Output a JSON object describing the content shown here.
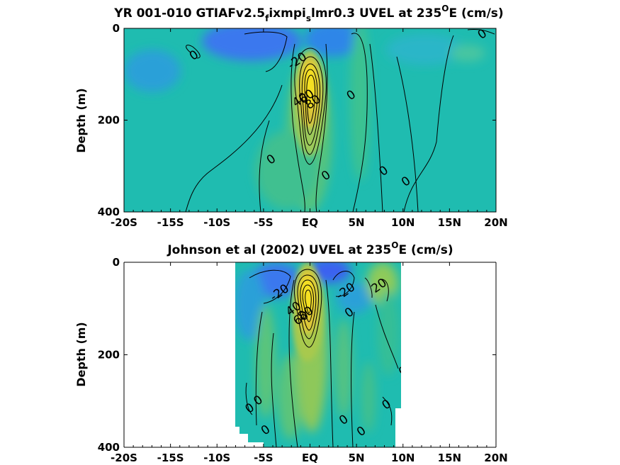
{
  "colors": {
    "background_field": "#1fbcb0",
    "negative_strong": "#3a78ee",
    "negative_mid": "#2aa0d8",
    "positive_mid": "#58c47a",
    "positive_high": "#c8c830",
    "core": "#f5e020",
    "contour": "#000000"
  },
  "chart_data": [
    {
      "id": "model",
      "type": "heatmap",
      "title": {
        "pre": "YR 001-010 GTIAFv2.5",
        "sub1": "f",
        "mid": "ixmpi",
        "sub2": "s",
        "post": "lmr0.3 UVEL at 235",
        "sup": "O",
        "end": "E (cm/s)"
      },
      "ylabel": "Depth (m)",
      "xticks": [
        "-20S",
        "-15S",
        "-10S",
        "-5S",
        "EQ",
        "5N",
        "10N",
        "15N",
        "20N"
      ],
      "yticks": [
        "0",
        "200",
        "400"
      ],
      "xlim": [
        -20,
        20
      ],
      "ylim": [
        0,
        400
      ],
      "data_lon_range": [
        -20,
        20
      ],
      "eastward_core": {
        "lat": 0,
        "depth": 120,
        "max": 100
      },
      "westward_cores": [
        {
          "lat": -4,
          "depth": 30,
          "min": -30
        },
        {
          "lat": 3,
          "depth": 20,
          "min": -25
        }
      ],
      "contour_levels": [
        -20,
        0,
        20,
        40,
        60,
        80,
        100
      ],
      "contour_labels": [
        {
          "text": "0",
          "lat": -12.5,
          "depth": 58
        },
        {
          "text": "-20",
          "lat": -1.4,
          "depth": 70
        },
        {
          "text": "0",
          "lat": 4.4,
          "depth": 145
        },
        {
          "text": "0",
          "lat": -4.2,
          "depth": 285
        },
        {
          "text": "0",
          "lat": 1.7,
          "depth": 320
        },
        {
          "text": "0",
          "lat": 7.9,
          "depth": 310
        },
        {
          "text": "0",
          "lat": 10.3,
          "depth": 333
        },
        {
          "text": "0",
          "lat": 18.5,
          "depth": 12
        },
        {
          "text": "40",
          "lat": -1.1,
          "depth": 155
        },
        {
          "text": "60",
          "lat": -0.4,
          "depth": 148
        },
        {
          "text": "80",
          "lat": 0.3,
          "depth": 160
        }
      ]
    },
    {
      "id": "obs",
      "type": "heatmap",
      "title": {
        "pre": "Johnson et al (2002) UVEL at 235",
        "sup": "O",
        "end": "E (cm/s)"
      },
      "ylabel": "Depth (m)",
      "xticks": [
        "-20S",
        "-15S",
        "-10S",
        "-5S",
        "EQ",
        "5N",
        "10N",
        "15N",
        "20N"
      ],
      "yticks": [
        "0",
        "200",
        "400"
      ],
      "xlim": [
        -20,
        20
      ],
      "ylim": [
        0,
        400
      ],
      "data_lon_range": [
        -8,
        10
      ],
      "eastward_core": {
        "lat": 0,
        "depth": 90,
        "max": 100
      },
      "westward_cores": [
        {
          "lat": -3,
          "depth": 35,
          "min": -30
        },
        {
          "lat": 2,
          "depth": 15,
          "min": -35
        }
      ],
      "contour_levels": [
        -20,
        0,
        20,
        40,
        60,
        80,
        100
      ],
      "contour_labels": [
        {
          "text": "-20",
          "lat": -3.3,
          "depth": 65
        },
        {
          "text": "-20",
          "lat": 3.8,
          "depth": 62
        },
        {
          "text": "20",
          "lat": 7.4,
          "depth": 50
        },
        {
          "text": "0",
          "lat": 4.2,
          "depth": 108
        },
        {
          "text": "0",
          "lat": 10.0,
          "depth": 235
        },
        {
          "text": "0",
          "lat": -6.5,
          "depth": 315
        },
        {
          "text": "0",
          "lat": -5.6,
          "depth": 298
        },
        {
          "text": "0",
          "lat": 8.2,
          "depth": 307
        },
        {
          "text": "0",
          "lat": 3.6,
          "depth": 340
        },
        {
          "text": "0",
          "lat": 5.5,
          "depth": 365
        },
        {
          "text": "0",
          "lat": -4.8,
          "depth": 362
        },
        {
          "text": "40",
          "lat": -1.8,
          "depth": 100
        },
        {
          "text": "60",
          "lat": -1.0,
          "depth": 120
        },
        {
          "text": "80",
          "lat": -0.5,
          "depth": 110
        }
      ]
    }
  ]
}
